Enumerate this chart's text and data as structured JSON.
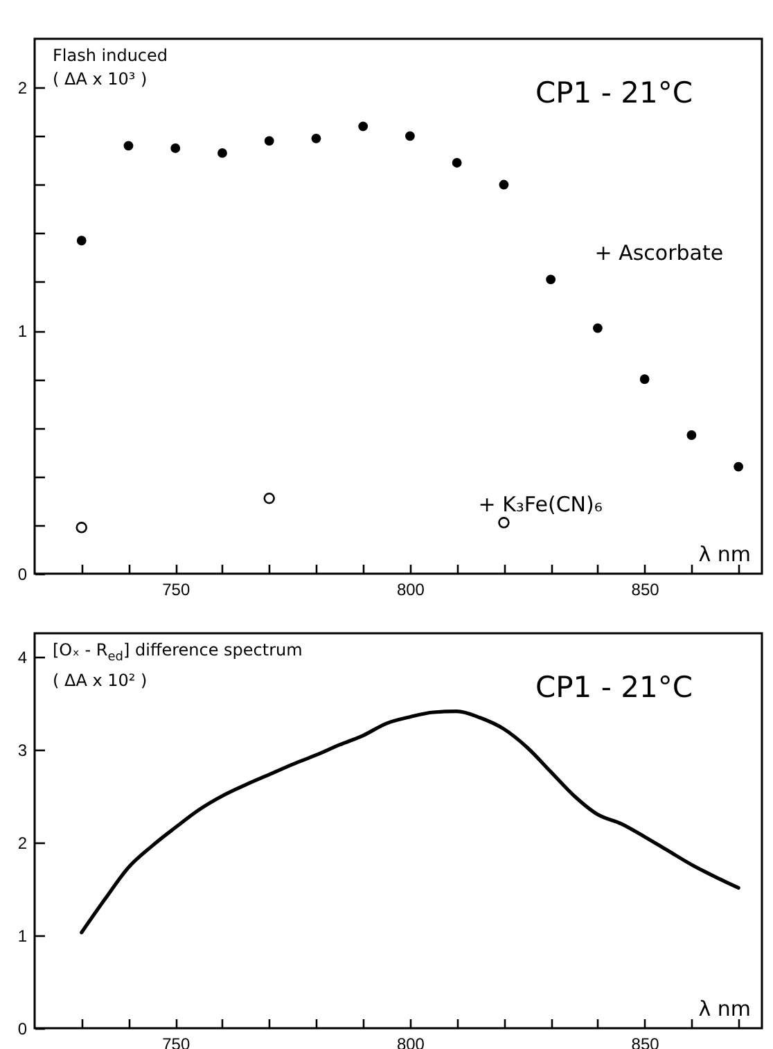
{
  "chart_data": [
    {
      "type": "scatter",
      "title": "CP1 - 21°C",
      "ylabel": "Flash induced\n( ΔA x 10³ )",
      "xlabel": "λ nm",
      "marker": "circle",
      "grid": false,
      "legend": false,
      "xlim": [
        720,
        875
      ],
      "ylim": [
        0,
        2.2
      ],
      "xticks": [
        {
          "value": 730,
          "label": null
        },
        {
          "value": 740,
          "label": null
        },
        750,
        {
          "value": 760,
          "label": null
        },
        {
          "value": 770,
          "label": null
        },
        {
          "value": 780,
          "label": null
        },
        {
          "value": 790,
          "label": null
        },
        800,
        {
          "value": 810,
          "label": null
        },
        {
          "value": 820,
          "label": null
        },
        {
          "value": 830,
          "label": null
        },
        {
          "value": 840,
          "label": null
        },
        850,
        {
          "value": 860,
          "label": null
        },
        {
          "value": 870,
          "label": null
        }
      ],
      "yticks": [
        0,
        {
          "value": 0.2,
          "label": null
        },
        {
          "value": 0.4,
          "label": null
        },
        {
          "value": 0.6,
          "label": null
        },
        {
          "value": 0.8,
          "label": null
        },
        1,
        {
          "value": 1.2,
          "label": null
        },
        {
          "value": 1.4,
          "label": null
        },
        {
          "value": 1.6,
          "label": null
        },
        {
          "value": 1.8,
          "label": null
        },
        2
      ],
      "series": [
        {
          "name": "+ Ascorbate",
          "color": "#000000",
          "x": [
            730,
            740,
            750,
            760,
            770,
            780,
            790,
            800,
            810,
            820,
            830,
            840,
            850,
            860,
            870
          ],
          "values": [
            1.37,
            1.76,
            1.75,
            1.73,
            1.78,
            1.79,
            1.84,
            1.8,
            1.69,
            1.6,
            1.21,
            1.01,
            0.8,
            0.57,
            0.44
          ]
        },
        {
          "name": "+ K₃Fe(CN)₆",
          "color": "#000000",
          "x": [
            730,
            770,
            820
          ],
          "values": [
            0.19,
            0.31,
            0.21
          ]
        }
      ]
    },
    {
      "type": "line",
      "title": "CP1 - 21°C",
      "ylabel": "[Oₓ - R$_{ed}$] difference spectrum\n( ΔA x 10² )",
      "xlabel": "λ nm",
      "grid": false,
      "legend": false,
      "line_style": "solid",
      "xlim": [
        720,
        875
      ],
      "ylim": [
        0,
        4.25
      ],
      "xticks": [
        {
          "value": 730,
          "label": null
        },
        {
          "value": 740,
          "label": null
        },
        750,
        {
          "value": 760,
          "label": null
        },
        {
          "value": 770,
          "label": null
        },
        {
          "value": 780,
          "label": null
        },
        {
          "value": 790,
          "label": null
        },
        800,
        {
          "value": 810,
          "label": null
        },
        {
          "value": 820,
          "label": null
        },
        {
          "value": 830,
          "label": null
        },
        {
          "value": 840,
          "label": null
        },
        850,
        {
          "value": 860,
          "label": null
        },
        {
          "value": 870,
          "label": null
        }
      ],
      "yticks": [
        0,
        1,
        2,
        3,
        4
      ],
      "series": [
        {
          "color": "#000000",
          "x": [
            730,
            735,
            740,
            745,
            750,
            755,
            760,
            765,
            770,
            775,
            780,
            785,
            790,
            795,
            800,
            805,
            810,
            815,
            820,
            825,
            830,
            835,
            840,
            845,
            850,
            855,
            860,
            865,
            870
          ],
          "values": [
            1.03,
            1.39,
            1.73,
            1.96,
            2.16,
            2.35,
            2.5,
            2.62,
            2.73,
            2.84,
            2.94,
            3.05,
            3.15,
            3.28,
            3.35,
            3.4,
            3.41,
            3.34,
            3.22,
            3.02,
            2.76,
            2.5,
            2.3,
            2.2,
            2.06,
            1.91,
            1.76,
            1.63,
            1.51
          ]
        }
      ]
    }
  ]
}
